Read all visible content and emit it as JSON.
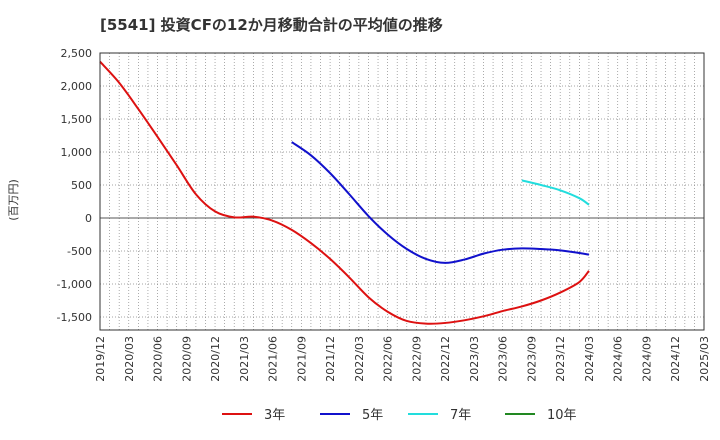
{
  "chart_data": {
    "type": "line",
    "title": "[5541]  投資CFの12か月移動合計の平均値の推移",
    "ylabel": "(百万円)",
    "xlabel": "",
    "ylim": [
      -1700,
      2500
    ],
    "yticks": [
      2500,
      2000,
      1500,
      1000,
      500,
      0,
      -500,
      -1000,
      -1500
    ],
    "ytick_labels": [
      "2,500",
      "2,000",
      "1,500",
      "1,000",
      "500",
      "0",
      "-500",
      "-1,000",
      "-1,500"
    ],
    "xtick_labels": [
      "2019/12",
      "2020/03",
      "2020/06",
      "2020/09",
      "2020/12",
      "2021/03",
      "2021/06",
      "2021/09",
      "2021/12",
      "2022/03",
      "2022/06",
      "2022/09",
      "2022/12",
      "2023/03",
      "2023/06",
      "2023/09",
      "2023/12",
      "2024/03",
      "2024/06",
      "2024/09",
      "2024/12",
      "2025/03"
    ],
    "grid": true,
    "legend_position": "bottom",
    "series": [
      {
        "name": "3年",
        "color": "#dd1111",
        "points": [
          [
            "2019/12",
            2370
          ],
          [
            "2020/02",
            2050
          ],
          [
            "2020/04",
            1650
          ],
          [
            "2020/06",
            1230
          ],
          [
            "2020/08",
            800
          ],
          [
            "2020/10",
            360
          ],
          [
            "2020/12",
            100
          ],
          [
            "2021/02",
            10
          ],
          [
            "2021/04",
            20
          ],
          [
            "2021/06",
            -40
          ],
          [
            "2021/08",
            -180
          ],
          [
            "2021/10",
            -380
          ],
          [
            "2021/12",
            -620
          ],
          [
            "2022/02",
            -900
          ],
          [
            "2022/04",
            -1200
          ],
          [
            "2022/06",
            -1420
          ],
          [
            "2022/08",
            -1560
          ],
          [
            "2022/10",
            -1600
          ],
          [
            "2022/12",
            -1590
          ],
          [
            "2023/02",
            -1550
          ],
          [
            "2023/04",
            -1490
          ],
          [
            "2023/06",
            -1410
          ],
          [
            "2023/08",
            -1340
          ],
          [
            "2023/10",
            -1250
          ],
          [
            "2023/12",
            -1130
          ],
          [
            "2024/02",
            -970
          ],
          [
            "2024/03",
            -800
          ]
        ]
      },
      {
        "name": "5年",
        "color": "#1111cc",
        "points": [
          [
            "2021/08",
            1150
          ],
          [
            "2021/10",
            950
          ],
          [
            "2021/12",
            680
          ],
          [
            "2022/02",
            360
          ],
          [
            "2022/04",
            30
          ],
          [
            "2022/06",
            -250
          ],
          [
            "2022/08",
            -470
          ],
          [
            "2022/10",
            -620
          ],
          [
            "2022/12",
            -680
          ],
          [
            "2023/02",
            -630
          ],
          [
            "2023/04",
            -540
          ],
          [
            "2023/06",
            -480
          ],
          [
            "2023/08",
            -460
          ],
          [
            "2023/10",
            -470
          ],
          [
            "2023/12",
            -490
          ],
          [
            "2024/02",
            -530
          ],
          [
            "2024/03",
            -555
          ]
        ]
      },
      {
        "name": "7年",
        "color": "#22dddd",
        "points": [
          [
            "2023/08",
            570
          ],
          [
            "2023/10",
            500
          ],
          [
            "2023/12",
            420
          ],
          [
            "2024/02",
            300
          ],
          [
            "2024/03",
            200
          ]
        ]
      },
      {
        "name": "10年",
        "color": "#228822",
        "points": []
      }
    ]
  }
}
